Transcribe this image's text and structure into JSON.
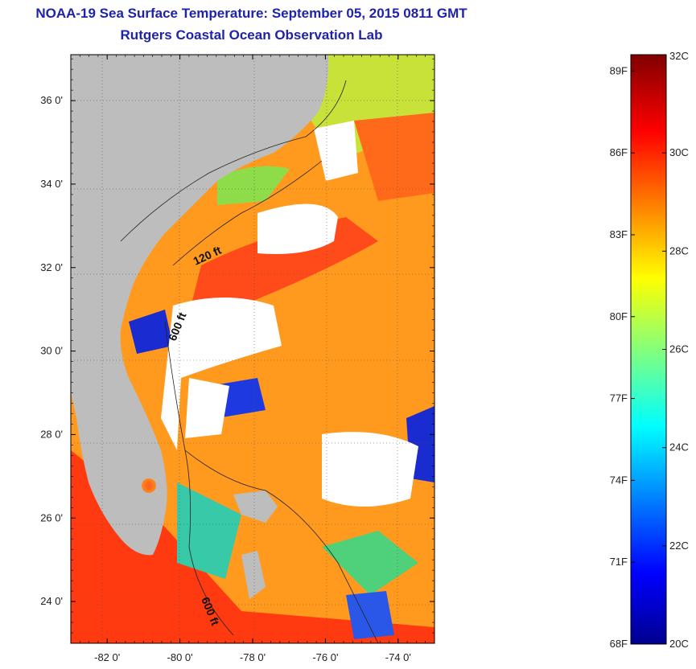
{
  "header": {
    "title": "NOAA-19 Sea Surface Temperature:  September 05, 2015 0811 GMT",
    "subtitle": "Rutgers Coastal Ocean Observation Lab"
  },
  "map": {
    "lat_labels": [
      "36 0'",
      "34 0'",
      "32 0'",
      "30 0'",
      "28 0'",
      "26 0'",
      "24 0'"
    ],
    "lat_values": [
      36,
      34,
      32,
      30,
      28,
      26,
      24
    ],
    "lon_labels": [
      "-82 0'",
      "-80 0'",
      "-78 0'",
      "-76 0'",
      "-74 0'"
    ],
    "lon_values": [
      -82,
      -80,
      -78,
      -76,
      -74
    ],
    "lat_range": [
      23,
      37.1
    ],
    "lon_range": [
      -83,
      -73
    ],
    "contour_labels": [
      "120 ft",
      "600 ft",
      "600 ft"
    ],
    "land_color": "#bdbdbd",
    "cloud_color": "#ffffff"
  },
  "colorbar": {
    "fahrenheit_labels": [
      "89F",
      "86F",
      "83F",
      "80F",
      "77F",
      "74F",
      "71F",
      "68F"
    ],
    "fahrenheit_values": [
      89,
      86,
      83,
      80,
      77,
      74,
      71,
      68
    ],
    "celsius_labels": [
      "32C",
      "30C",
      "28C",
      "26C",
      "24C",
      "22C",
      "20C"
    ],
    "celsius_values": [
      32,
      30,
      28,
      26,
      24,
      22,
      20
    ],
    "range_c": [
      20,
      32
    ],
    "colormap": "jet"
  }
}
